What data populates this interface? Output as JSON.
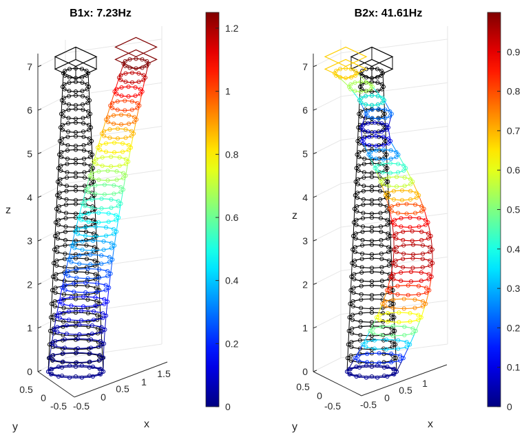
{
  "chart_data": [
    {
      "type": "3d-mode-shape",
      "title": "B1x: 7.23Hz",
      "xlabel": "x",
      "ylabel": "y",
      "zlabel": "z",
      "xticks": [
        "-0.5",
        "0",
        "0.5",
        "1",
        "1.5"
      ],
      "yticks": [
        "-0.5",
        "0",
        "0.5"
      ],
      "zticks": [
        "0",
        "1",
        "2",
        "3",
        "4",
        "5",
        "6",
        "7"
      ],
      "zlim": [
        0,
        7.3
      ],
      "colorbar": {
        "ticks": [
          "0",
          "0.2",
          "0.4",
          "0.6",
          "0.8",
          "1",
          "1.2"
        ],
        "range": [
          0,
          1.25
        ]
      },
      "series": [
        {
          "role": "undeformed",
          "color": "#000000"
        },
        {
          "role": "deformed",
          "colormap": "jet",
          "max_lateral_displacement": 1.25,
          "shape": "first bending"
        }
      ]
    },
    {
      "type": "3d-mode-shape",
      "title": "B2x: 41.61Hz",
      "xlabel": "x",
      "ylabel": "y",
      "zlabel": "z",
      "xticks": [
        "-0.5",
        "0",
        "0.5",
        "1"
      ],
      "yticks": [
        "-0.5",
        "0",
        "0.5"
      ],
      "zticks": [
        "0",
        "1",
        "2",
        "3",
        "4",
        "5",
        "6",
        "7"
      ],
      "zlim": [
        0,
        7.3
      ],
      "colorbar": {
        "ticks": [
          "0",
          "0.1",
          "0.2",
          "0.3",
          "0.4",
          "0.5",
          "0.6",
          "0.7",
          "0.8",
          "0.9"
        ],
        "range": [
          0,
          1.0
        ]
      },
      "series": [
        {
          "role": "undeformed",
          "color": "#000000"
        },
        {
          "role": "deformed",
          "colormap": "jet",
          "max_lateral_displacement": 1.0,
          "shape": "second bending"
        }
      ]
    }
  ]
}
